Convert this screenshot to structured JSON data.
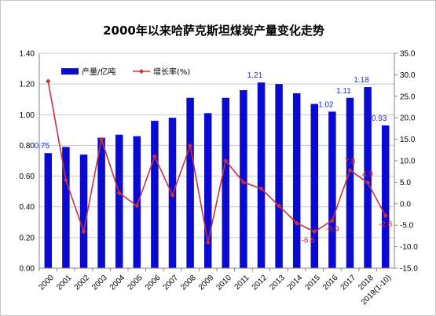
{
  "chart_data": {
    "type": "bar",
    "title": "2000年以来哈萨克斯坦煤炭产量变化走势",
    "categories": [
      "2000",
      "2001",
      "2002",
      "2003",
      "2004",
      "2005",
      "2006",
      "2007",
      "2008",
      "2009",
      "2010",
      "2011",
      "2012",
      "2013",
      "2014",
      "2015",
      "2016",
      "2017",
      "2018",
      "2019(1-10)"
    ],
    "series": [
      {
        "name": "产量/亿吨",
        "chart_kind": "bar",
        "axis": "left",
        "color": "#0a0ad2",
        "values": [
          0.75,
          0.79,
          0.74,
          0.85,
          0.87,
          0.86,
          0.96,
          0.98,
          1.11,
          1.01,
          1.11,
          1.16,
          1.21,
          1.2,
          1.14,
          1.07,
          1.02,
          1.11,
          1.18,
          0.93
        ]
      },
      {
        "name": "增长率(%)",
        "chart_kind": "line",
        "axis": "right",
        "color": "#c8323c",
        "values": [
          28.5,
          5.5,
          -6.5,
          15.0,
          2.5,
          -0.5,
          11.0,
          2.0,
          13.5,
          -9.0,
          10.0,
          5.0,
          3.5,
          -0.5,
          -4.5,
          -6.5,
          -3.9,
          7.8,
          4.9,
          -2.8
        ]
      }
    ],
    "bar_labels": [
      {
        "index": 0,
        "text": "0.75"
      },
      {
        "index": 12,
        "text": "1.21"
      },
      {
        "index": 16,
        "text": "1.02"
      },
      {
        "index": 17,
        "text": "1.11"
      },
      {
        "index": 18,
        "text": "1.18"
      },
      {
        "index": 19,
        "text": "0.93"
      }
    ],
    "line_labels": [
      {
        "index": 15,
        "text": "-6.5"
      },
      {
        "index": 16,
        "text": "-3.9"
      },
      {
        "index": 17,
        "text": "7.8"
      },
      {
        "index": 18,
        "text": "4.9"
      },
      {
        "index": 19,
        "text": "-2.8"
      }
    ],
    "left_axis": {
      "ylim": [
        0,
        1.4
      ],
      "ticks": [
        "0.00",
        "0.20",
        "0.40",
        "0.60",
        "0.80",
        "1.00",
        "1.20",
        "1.40"
      ],
      "tick_values": [
        0,
        0.2,
        0.4,
        0.6,
        0.8,
        1.0,
        1.2,
        1.4
      ]
    },
    "right_axis": {
      "ylim": [
        -15,
        35
      ],
      "ticks": [
        "-15.0",
        "-10.0",
        "-5.0",
        "0.0",
        "5.0",
        "10.0",
        "15.0",
        "20.0",
        "25.0",
        "30.0",
        "35.0"
      ],
      "tick_values": [
        -15,
        -10,
        -5,
        0,
        5,
        10,
        15,
        20,
        25,
        30,
        35
      ]
    },
    "grid": true,
    "legend_position": "top-left"
  }
}
